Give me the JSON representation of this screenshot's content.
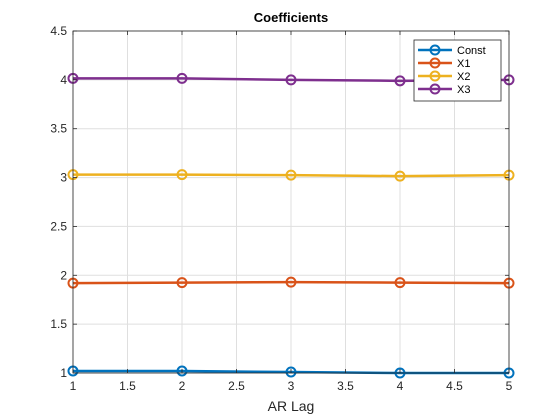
{
  "chart_data": {
    "type": "line",
    "title": "Coefficients",
    "xlabel": "AR Lag",
    "ylabel": "",
    "x": [
      1,
      2,
      3,
      4,
      5
    ],
    "xlim": [
      1,
      5
    ],
    "ylim": [
      1,
      4.5
    ],
    "xticks": [
      "1",
      "1.5",
      "2",
      "2.5",
      "3",
      "3.5",
      "4",
      "4.5",
      "5"
    ],
    "yticks": [
      "1",
      "1.5",
      "2",
      "2.5",
      "3",
      "3.5",
      "4",
      "4.5"
    ],
    "grid": true,
    "legend_position": "top-right",
    "series": [
      {
        "name": "Const",
        "color": "#0072BD",
        "values": [
          1.02,
          1.02,
          1.01,
          1.0,
          1.0
        ]
      },
      {
        "name": "X1",
        "color": "#D95319",
        "values": [
          1.92,
          1.925,
          1.93,
          1.925,
          1.92
        ]
      },
      {
        "name": "X2",
        "color": "#EDB120",
        "values": [
          3.03,
          3.03,
          3.025,
          3.015,
          3.025
        ]
      },
      {
        "name": "X3",
        "color": "#7E2F8E",
        "values": [
          4.015,
          4.015,
          4.0,
          3.99,
          4.0
        ]
      }
    ]
  }
}
